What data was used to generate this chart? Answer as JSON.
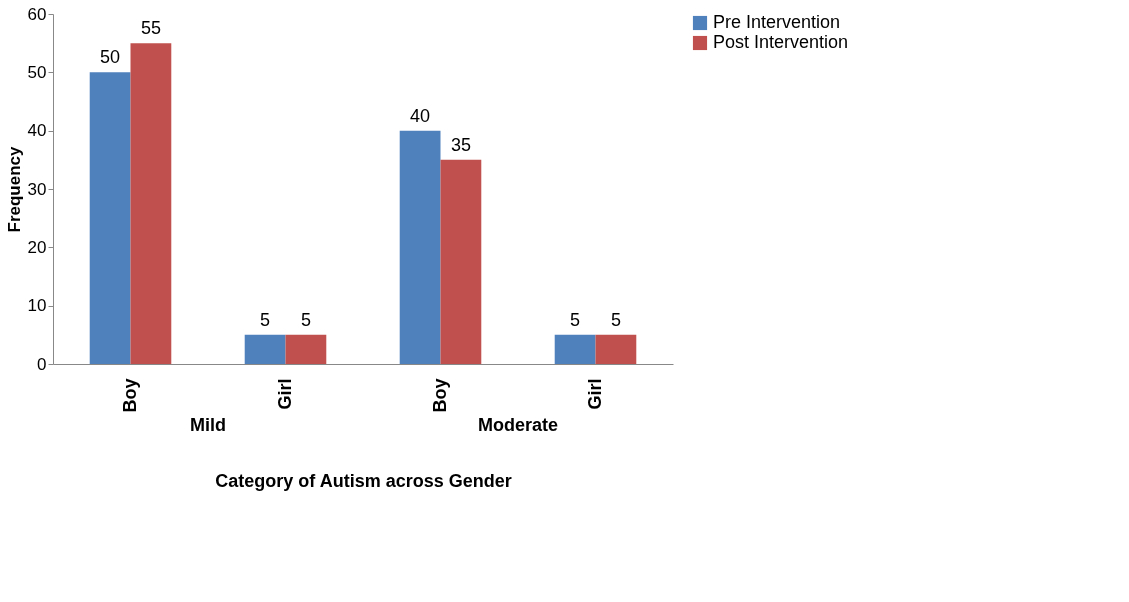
{
  "chart_data": {
    "type": "bar",
    "xlabel": "Category of Autism across Gender",
    "ylabel": "Frequency",
    "categories": [
      "Boy",
      "Girl",
      "Boy",
      "Girl"
    ],
    "series": [
      {
        "name": "Pre Intervention",
        "color": "#4f81bd",
        "values": [
          50,
          5,
          40,
          5
        ]
      },
      {
        "name": "Post Intervention",
        "color": "#c0504d",
        "values": [
          55,
          5,
          35,
          5
        ]
      }
    ],
    "annotations": [
      "Mild",
      "Moderate"
    ],
    "ylim": [
      0,
      60
    ],
    "yticks": [
      0,
      10,
      20,
      30,
      40,
      50,
      60
    ],
    "data_labels": true,
    "grid": false,
    "legend": "right"
  }
}
